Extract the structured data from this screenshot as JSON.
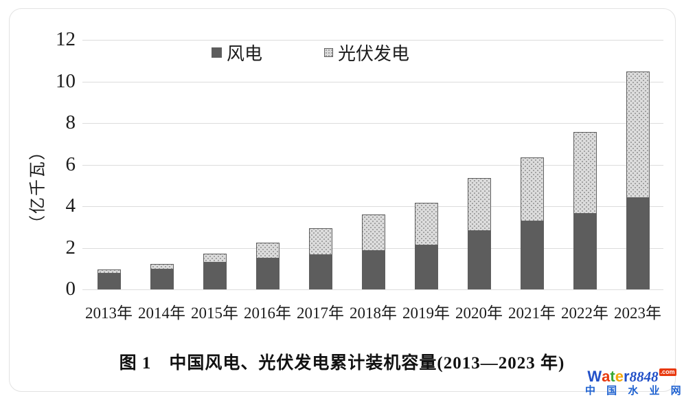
{
  "chart_data": {
    "type": "bar",
    "stacked": true,
    "title": "图 1　中国风电、光伏发电累计装机容量(2013—2023 年)",
    "ylabel": "（亿千瓦）",
    "categories": [
      "2013年",
      "2014年",
      "2015年",
      "2016年",
      "2017年",
      "2018年",
      "2019年",
      "2020年",
      "2021年",
      "2022年",
      "2023年"
    ],
    "series": [
      {
        "name": "风电",
        "pattern": "solid",
        "color": "#5d5d5d",
        "values": [
          0.77,
          0.96,
          1.29,
          1.49,
          1.64,
          1.84,
          2.1,
          2.81,
          3.28,
          3.65,
          4.41
        ]
      },
      {
        "name": "光伏发电",
        "pattern": "dots",
        "color": "#dcdcdc",
        "dot_color": "#8f8f8f",
        "values": [
          0.19,
          0.28,
          0.43,
          0.77,
          1.3,
          1.74,
          2.04,
          2.53,
          3.06,
          3.93,
          6.09
        ]
      }
    ],
    "totals": [
      0.96,
      1.24,
      1.72,
      2.26,
      2.94,
      3.58,
      4.14,
      5.34,
      6.34,
      7.58,
      10.5
    ],
    "ylim": [
      0,
      12
    ],
    "yticks": [
      0,
      2,
      4,
      6,
      8,
      10,
      12
    ],
    "grid": true,
    "grid_color": "#dcdcdc",
    "legend_position": "top-center"
  },
  "caption": {
    "text": "图 1　中国风电、光伏发电累计装机容量(2013—2023 年)"
  },
  "watermark": {
    "brand": "Water",
    "letters": [
      {
        "ch": "W",
        "color": "#2250c8"
      },
      {
        "ch": "a",
        "color": "#e8380d"
      },
      {
        "ch": "t",
        "color": "#3aaa35"
      },
      {
        "ch": "e",
        "color": "#f5a70a"
      },
      {
        "ch": "r",
        "color": "#2250c8"
      }
    ],
    "number": "8848",
    "tld": ".com",
    "tld_bg": "#e8380d",
    "subtitle": "中 国 水 业 网",
    "subtitle_color": "#1f62d0"
  }
}
